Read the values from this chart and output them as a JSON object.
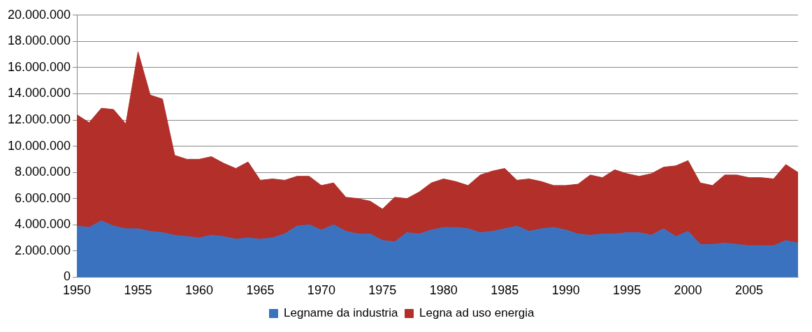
{
  "chart_data": {
    "type": "area",
    "stacked": true,
    "categories": [
      "1950",
      null,
      null,
      null,
      null,
      "1955",
      null,
      null,
      null,
      null,
      "1960",
      null,
      null,
      null,
      null,
      "1965",
      null,
      null,
      null,
      null,
      "1970",
      null,
      null,
      null,
      null,
      "1975",
      null,
      null,
      null,
      null,
      "1980",
      null,
      null,
      null,
      null,
      "1985",
      null,
      null,
      null,
      null,
      "1990",
      null,
      null,
      null,
      null,
      "1995",
      null,
      null,
      null,
      null,
      "2000",
      null,
      null,
      null,
      null,
      "2005",
      null,
      null,
      null,
      null
    ],
    "series": [
      {
        "name": "Legname da industria",
        "color": "#3a72c0",
        "values": [
          3900000,
          3800000,
          4300000,
          3900000,
          3700000,
          3700000,
          3500000,
          3400000,
          3200000,
          3100000,
          3000000,
          3200000,
          3100000,
          2900000,
          3000000,
          2900000,
          3000000,
          3300000,
          3900000,
          4000000,
          3600000,
          4000000,
          3500000,
          3300000,
          3300000,
          2800000,
          2700000,
          3400000,
          3300000,
          3600000,
          3800000,
          3800000,
          3700000,
          3400000,
          3500000,
          3700000,
          3900000,
          3500000,
          3700000,
          3800000,
          3600000,
          3300000,
          3200000,
          3300000,
          3300000,
          3400000,
          3400000,
          3200000,
          3700000,
          3100000,
          3500000,
          2500000,
          2500000,
          2600000,
          2500000,
          2400000,
          2400000,
          2400000,
          2800000,
          2600000
        ]
      },
      {
        "name": "Legna ad uso energia",
        "color": "#b22f2a",
        "values": [
          8500000,
          8000000,
          8600000,
          8900000,
          8000000,
          13500000,
          10400000,
          10200000,
          6100000,
          5900000,
          6000000,
          6000000,
          5600000,
          5400000,
          5800000,
          4500000,
          4500000,
          4100000,
          3800000,
          3700000,
          3400000,
          3200000,
          2600000,
          2700000,
          2500000,
          2400000,
          3400000,
          2600000,
          3200000,
          3600000,
          3700000,
          3500000,
          3300000,
          4400000,
          4600000,
          4600000,
          3500000,
          4000000,
          3600000,
          3200000,
          3400000,
          3800000,
          4600000,
          4300000,
          4900000,
          4500000,
          4300000,
          4700000,
          4700000,
          5400000,
          5400000,
          4700000,
          4500000,
          5200000,
          5300000,
          5200000,
          5200000,
          5100000,
          5800000,
          5400000
        ]
      }
    ],
    "ylim": [
      0,
      20000000
    ],
    "yticks": [
      0,
      {
        "value": 2000000,
        "label": "2.000.000"
      },
      {
        "value": 4000000,
        "label": "4.000.000"
      },
      {
        "value": 6000000,
        "label": "6.000.000"
      },
      {
        "value": 8000000,
        "label": "8.000.000"
      },
      {
        "value": 10000000,
        "label": "10.000.000"
      },
      {
        "value": 12000000,
        "label": "12.000.000"
      },
      {
        "value": 14000000,
        "label": "14.000.000"
      },
      {
        "value": 16000000,
        "label": "16.000.000"
      },
      {
        "value": 18000000,
        "label": "18.000.000"
      },
      {
        "value": 20000000,
        "label": "20.000.000"
      }
    ],
    "grid": "y",
    "legend": "bottom"
  }
}
